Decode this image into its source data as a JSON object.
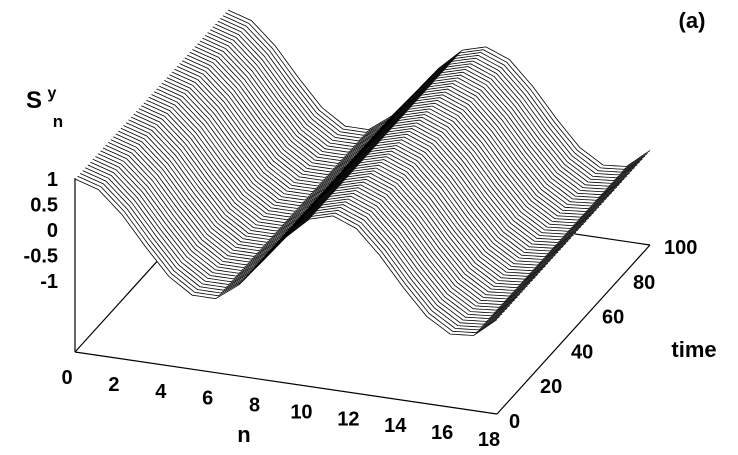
{
  "chart_data": {
    "type": "surface",
    "panel_label": "(a)",
    "xlabel": "n",
    "ylabel": "time",
    "zlabel_main": "S",
    "zlabel_sup": "y",
    "zlabel_sub": "n",
    "xlim": [
      0,
      18
    ],
    "ylim": [
      0,
      100
    ],
    "zlim": [
      -1,
      1
    ],
    "x_ticks": [
      "0",
      "2",
      "4",
      "6",
      "8",
      "10",
      "12",
      "14",
      "16",
      "18"
    ],
    "y_ticks": [
      "0",
      "20",
      "40",
      "60",
      "80",
      "100"
    ],
    "z_ticks": [
      "1",
      "0.5",
      "0",
      "-0.5",
      "-1"
    ],
    "surface": {
      "description_function": "S^y_n = sin(2*pi*n/11 + phi), constant in time",
      "n_values": [
        0,
        1,
        2,
        3,
        4,
        5,
        6,
        7,
        8,
        9,
        10,
        11,
        12,
        13,
        14,
        15,
        16,
        17,
        18
      ],
      "profile_values": [
        0.98,
        0.84,
        0.42,
        -0.14,
        -0.66,
        -0.96,
        -0.96,
        -0.62,
        -0.09,
        0.45,
        0.87,
        1.0,
        0.82,
        0.36,
        -0.2,
        -0.7,
        -0.98,
        -0.94,
        -0.56
      ],
      "time_samples": 60
    }
  }
}
